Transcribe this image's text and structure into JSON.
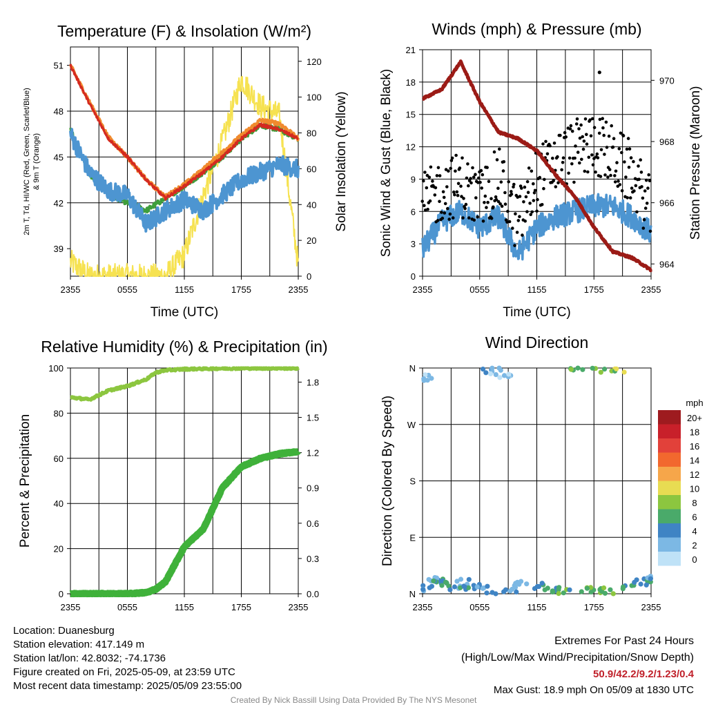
{
  "colors": {
    "temp": "#d42a20",
    "windchill": "#e0542c",
    "dewpoint": "#3f9e3c",
    "temp9m": "#f08a2e",
    "insolation": "#f6e251",
    "wind": "#4d95d1",
    "gust": "#000000",
    "pressure": "#9b1b16",
    "rh": "#8cc63f",
    "precip": "#3fb13a"
  },
  "panels": [
    {
      "id": "temperature",
      "title": "Temperature (F) & Insolation (W/m²)",
      "xlabel": "Time (UTC)",
      "ylabel_left_lines": [
        "2m T, Td, HI/WC (Red, Green, Scarlet/Blue)",
        "& 9m T (Orange)"
      ],
      "ylabel_right": "Solar Insolation (Yellow)",
      "xticks": [
        "2355",
        "0555",
        "1155",
        "1755",
        "2355"
      ],
      "yticks_left": [
        "39",
        "42",
        "45",
        "48",
        "51"
      ],
      "yticks_right": [
        "0",
        "20",
        "40",
        "60",
        "80",
        "100",
        "120"
      ]
    },
    {
      "id": "wind",
      "title": "Winds (mph) & Pressure (mb)",
      "xlabel": "Time (UTC)",
      "ylabel_left": "Sonic Wind & Gust (Blue, Black)",
      "ylabel_right": "Station Pressure (Maroon)",
      "xticks": [
        "2355",
        "0555",
        "1155",
        "1755",
        "2355"
      ],
      "yticks_left": [
        "0",
        "3",
        "6",
        "9",
        "12",
        "15",
        "18",
        "21"
      ],
      "yticks_right": [
        "964",
        "966",
        "968",
        "970"
      ]
    },
    {
      "id": "humidity",
      "title": "Relative Humidity (%) & Precipitation (in)",
      "ylabel_left": "Percent & Precipitation",
      "xticks": [
        "2355",
        "0555",
        "1155",
        "1755",
        "2355"
      ],
      "yticks_left": [
        "0",
        "20",
        "40",
        "60",
        "80",
        "100"
      ],
      "yticks_right": [
        "0.0",
        "0.3",
        "0.6",
        "0.9",
        "1.2",
        "1.5",
        "1.8"
      ]
    },
    {
      "id": "direction",
      "title": "Wind Direction",
      "ylabel_left": "Direction (Colored By Speed)",
      "xticks": [
        "2355",
        "0555",
        "1155",
        "1755",
        "2355"
      ],
      "yticks_left": [
        "N",
        "E",
        "S",
        "W",
        "N"
      ],
      "legend_title": "mph",
      "legend_labels": [
        "20+",
        "18",
        "16",
        "14",
        "12",
        "10",
        "8",
        "6",
        "4",
        "2",
        "0"
      ],
      "legend_colors": [
        "#9e1b1f",
        "#c8202a",
        "#e2413a",
        "#f2682e",
        "#f6a64a",
        "#e8dc52",
        "#8cc63f",
        "#4aaa6a",
        "#3f84c4",
        "#7cb8e4",
        "#bfe2f7"
      ]
    }
  ],
  "chart_data": [
    {
      "type": "line",
      "title": "Temperature (F) & Insolation (W/m²)",
      "xlabel": "Time (UTC)",
      "ylabel": "2m T, Td, HI/WC (Red, Green, Scarlet/Blue) & 9m T (Orange)",
      "ylabel_right": "Solar Insolation (Yellow)",
      "x_hours": [
        0,
        2,
        4,
        6,
        8,
        10,
        12,
        14,
        16,
        18,
        20,
        22,
        24
      ],
      "ylim": [
        37.2,
        52.2
      ],
      "ylim_right": [
        0,
        128
      ],
      "series": [
        {
          "values": [
            51.0,
            48.5,
            46.2,
            45.0,
            43.5,
            42.3,
            43.1,
            44.0,
            45.0,
            46.2,
            47.1,
            46.8,
            46.2
          ]
        },
        {
          "values": [
            46.8,
            43.9,
            42.6,
            42.0,
            41.5,
            42.3,
            43.1,
            44.0,
            45.0,
            46.2,
            47.1,
            46.8,
            46.2
          ]
        },
        {
          "values": [
            46.5,
            44.0,
            42.8,
            42.5,
            40.6,
            41.5,
            42.2,
            41.5,
            42.5,
            43.5,
            44.0,
            44.5,
            44.2
          ]
        },
        {
          "values": [
            51.0,
            48.6,
            46.3,
            45.0,
            43.5,
            42.4,
            43.2,
            44.2,
            45.3,
            46.4,
            47.4,
            47.2,
            46.2
          ]
        },
        {
          "values": [
            8,
            0,
            0,
            0,
            0,
            0,
            12,
            45,
            75,
            110,
            95,
            90,
            6
          ]
        }
      ]
    },
    {
      "type": "line",
      "title": "Winds (mph) & Pressure (mb)",
      "xlabel": "Time (UTC)",
      "ylabel": "Sonic Wind & Gust (Blue, Black)",
      "ylabel_right": "Station Pressure (Maroon)",
      "x_hours": [
        0,
        2,
        4,
        6,
        8,
        10,
        12,
        14,
        16,
        18,
        20,
        22,
        24
      ],
      "ylim": [
        0,
        21
      ],
      "ylim_right": [
        963.6,
        971.0
      ],
      "series": [
        {
          "values": [
            2.5,
            5.0,
            6.0,
            4.5,
            5.5,
            2.0,
            4.5,
            5.5,
            6.0,
            6.5,
            6.5,
            5.5,
            4.0
          ]
        },
        {
          "values": [
            6.5,
            8.0,
            8.5,
            7.0,
            9.0,
            5.0,
            9.0,
            10.5,
            11.5,
            12.5,
            11.0,
            9.5,
            6.0
          ]
        },
        {
          "values": [
            969.4,
            969.7,
            970.6,
            969.3,
            968.3,
            968.1,
            967.7,
            966.9,
            966.2,
            965.2,
            964.4,
            964.2,
            963.8
          ]
        }
      ],
      "max_gust": {
        "time": "1830",
        "value": 18.9
      }
    },
    {
      "type": "line",
      "title": "Relative Humidity (%) & Precipitation (in)",
      "ylabel": "Percent & Precipitation",
      "x_hours": [
        0,
        2,
        4,
        6,
        8,
        9,
        10,
        12,
        14,
        16,
        18,
        20,
        22,
        24
      ],
      "ylim": [
        0,
        100
      ],
      "ylim_right": [
        0,
        1.92
      ],
      "series": [
        {
          "values": [
            87,
            86,
            90,
            92,
            95,
            98,
            99,
            99.5,
            99.7,
            99.8,
            99.9,
            99.9,
            99.9,
            99.9
          ]
        },
        {
          "values": [
            0.0,
            0.0,
            0.0,
            0.0,
            0.01,
            0.04,
            0.1,
            0.4,
            0.55,
            0.9,
            1.08,
            1.15,
            1.19,
            1.21
          ]
        }
      ]
    },
    {
      "type": "scatter",
      "title": "Wind Direction",
      "ylabel": "Direction (Colored By Speed)",
      "y_categories": [
        "N",
        "E",
        "S",
        "W",
        "N"
      ],
      "ylim_degrees": [
        0,
        360
      ],
      "points": [
        {
          "hour": 0.3,
          "dir": 345,
          "speed": 2
        },
        {
          "hour": 0.5,
          "dir": 10,
          "speed": 3
        },
        {
          "hour": 1.2,
          "dir": 25,
          "speed": 2
        },
        {
          "hour": 1.8,
          "dir": 20,
          "speed": 4
        },
        {
          "hour": 2.5,
          "dir": 15,
          "speed": 5
        },
        {
          "hour": 3.4,
          "dir": 12,
          "speed": 4
        },
        {
          "hour": 4.2,
          "dir": 18,
          "speed": 3
        },
        {
          "hour": 5.1,
          "dir": 10,
          "speed": 4
        },
        {
          "hour": 6.3,
          "dir": 12,
          "speed": 3
        },
        {
          "hour": 7.0,
          "dir": 358,
          "speed": 4
        },
        {
          "hour": 7.8,
          "dir": 355,
          "speed": 2
        },
        {
          "hour": 8.6,
          "dir": 348,
          "speed": 1
        },
        {
          "hour": 9.2,
          "dir": 5,
          "speed": 2
        },
        {
          "hour": 10.3,
          "dir": 15,
          "speed": 3
        },
        {
          "hour": 12.4,
          "dir": 12,
          "speed": 4
        },
        {
          "hour": 13.5,
          "dir": 8,
          "speed": 5
        },
        {
          "hour": 14.8,
          "dir": 5,
          "speed": 6
        },
        {
          "hour": 16.2,
          "dir": 358,
          "speed": 6
        },
        {
          "hour": 17.5,
          "dir": 6,
          "speed": 7
        },
        {
          "hour": 18.5,
          "dir": 357,
          "speed": 7
        },
        {
          "hour": 19.3,
          "dir": 8,
          "speed": 7
        },
        {
          "hour": 20.5,
          "dir": 358,
          "speed": 8
        },
        {
          "hour": 21.7,
          "dir": 14,
          "speed": 6
        },
        {
          "hour": 23.0,
          "dir": 18,
          "speed": 5
        },
        {
          "hour": 23.8,
          "dir": 22,
          "speed": 4
        }
      ]
    }
  ],
  "footer": {
    "location": "Location: Duanesburg",
    "elevation": "Station elevation: 417.149 m",
    "latlon": "Station lat/lon: 42.8032; -74.1736",
    "created": "Figure created on Fri, 2025-05-09, at 23:59 UTC",
    "recent": "Most recent data timestamp: 2025/05/09 23:55:00",
    "extremes_title": "Extremes For Past 24 Hours",
    "extremes_sub": "(High/Low/Max Wind/Precipitation/Snow Depth)",
    "extremes_values": "50.9/42.2/9.2/1.23/0.4",
    "max_gust": "Max Gust: 18.9 mph On 05/09 at 1830 UTC",
    "credit": "Created By Nick Bassill Using Data Provided By The NYS Mesonet"
  }
}
